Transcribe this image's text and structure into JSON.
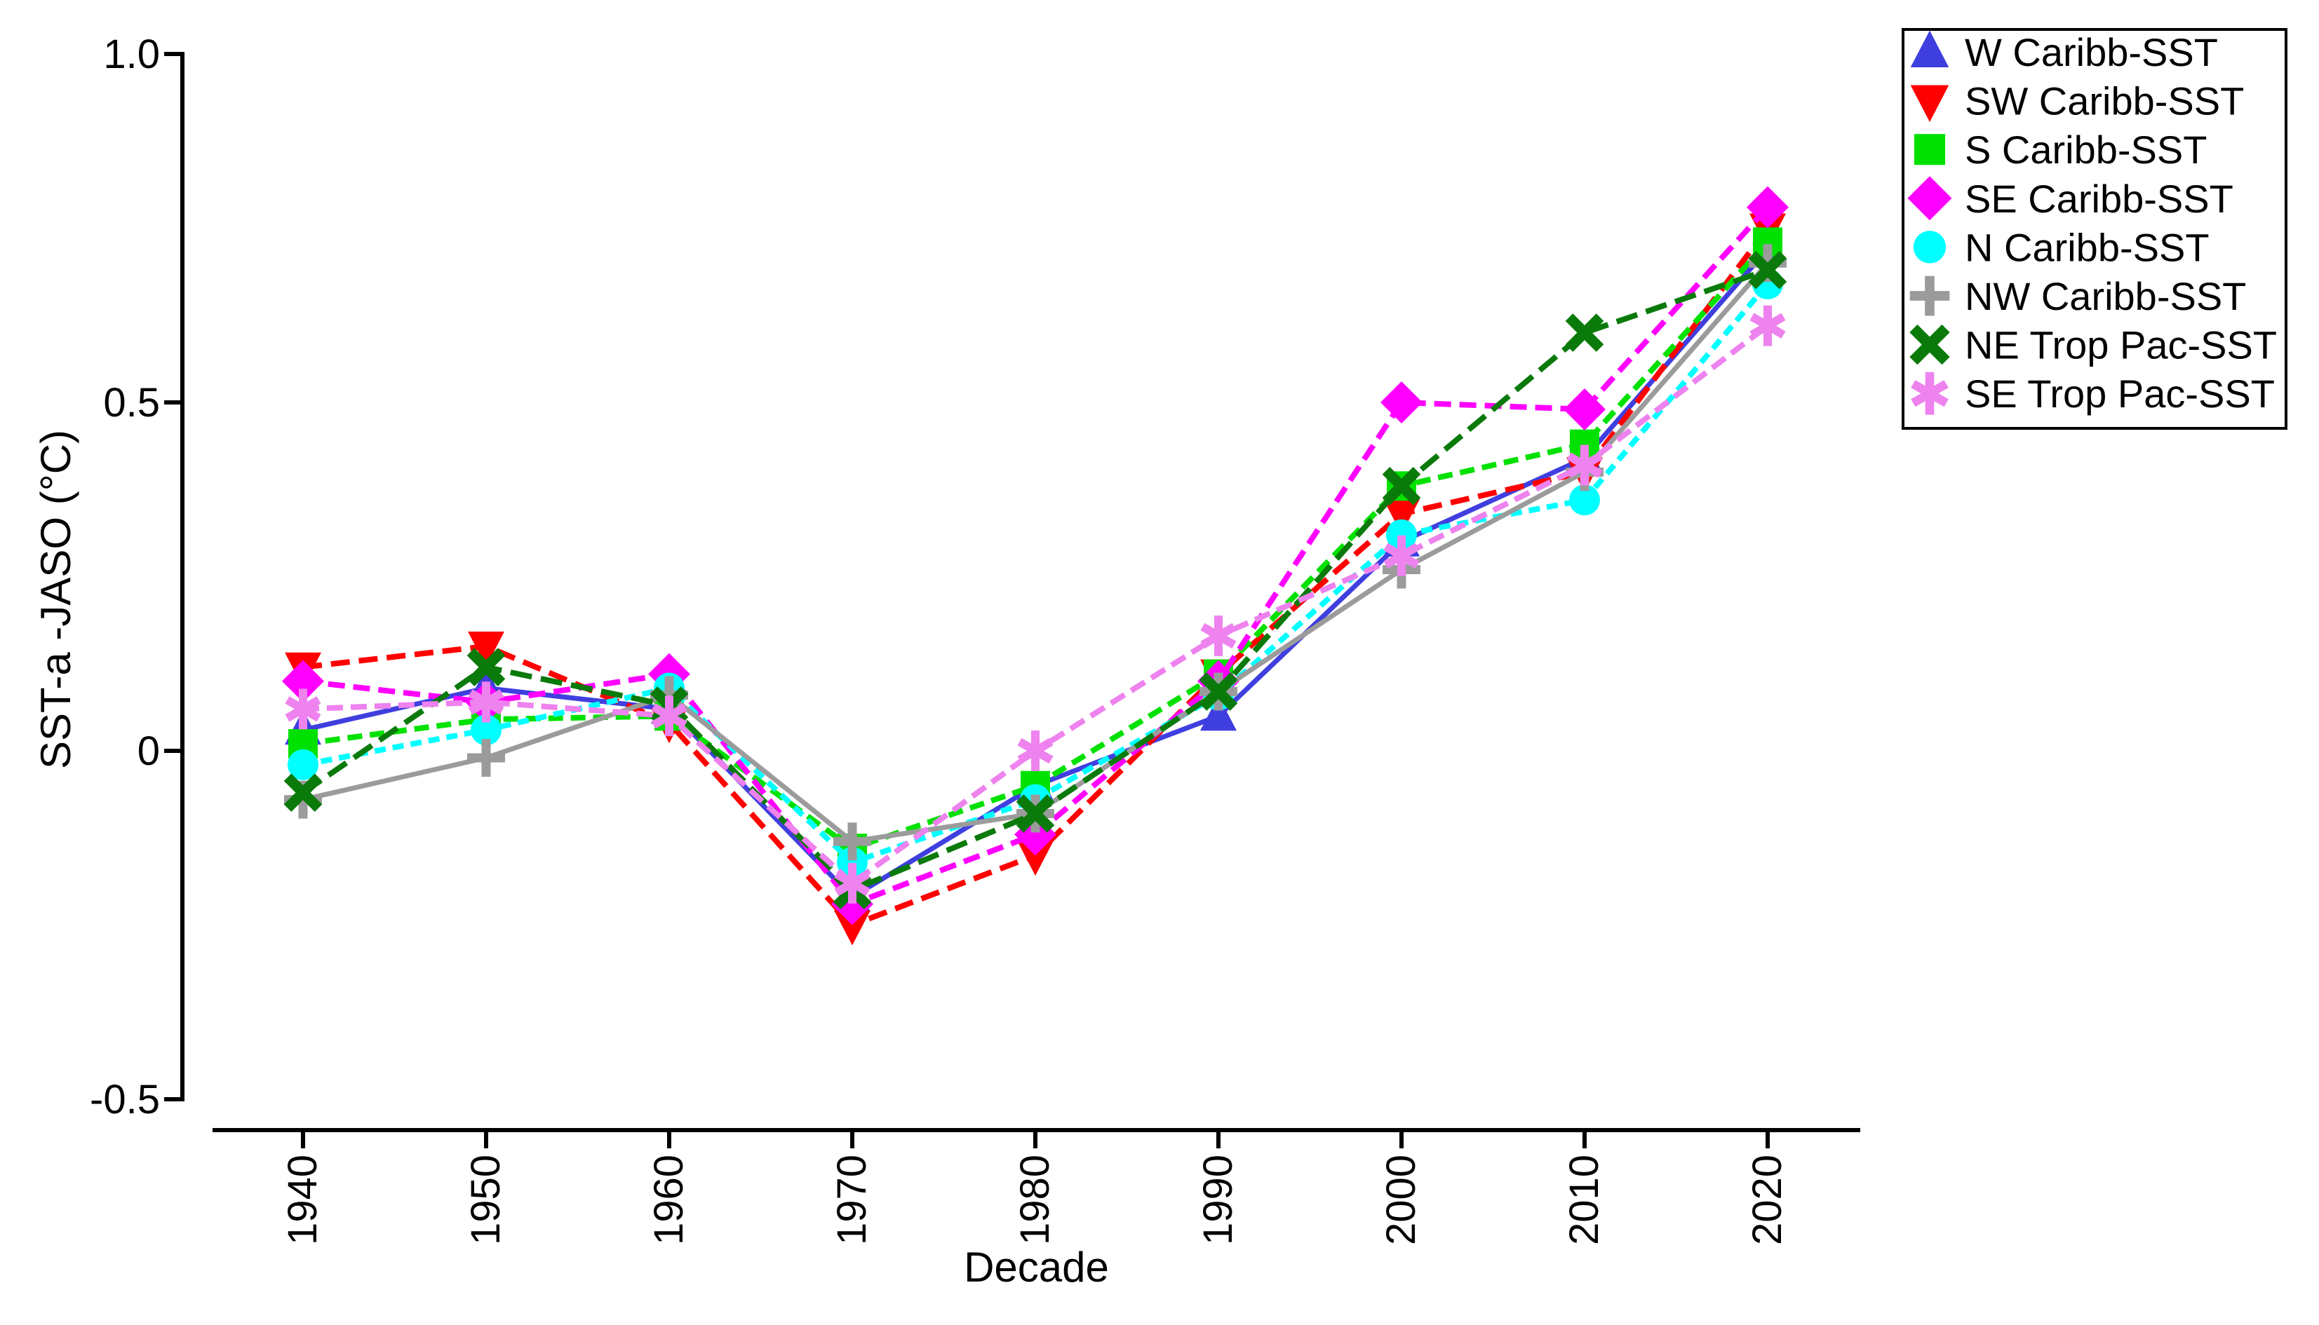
{
  "chart_data": {
    "type": "line",
    "x": [
      1940,
      1950,
      1960,
      1970,
      1980,
      1990,
      2000,
      2010,
      2020
    ],
    "x_tick_labels": [
      "1940",
      "1950",
      "1960",
      "1970",
      "1980",
      "1990",
      "2000",
      "2010",
      "2020"
    ],
    "xlabel": "Decade",
    "ylabel": "SST-a -JASO (°C)",
    "ylim": [
      -0.5,
      1.0
    ],
    "y_ticks": [
      {
        "value": 1.0,
        "label": "1.0"
      },
      {
        "value": 0.5,
        "label": "0.5"
      },
      {
        "value": 0.0,
        "label": "0"
      },
      {
        "value": -0.5,
        "label": "-0.5"
      }
    ],
    "grid": false,
    "legend_position": "top-right",
    "series": [
      {
        "name": "W Caribb-SST",
        "marker": "triangle-up",
        "color": "#3f3fe0",
        "line": "solid",
        "dash": null,
        "values": [
          0.03,
          0.09,
          0.06,
          -0.21,
          -0.05,
          0.05,
          0.3,
          0.42,
          0.72
        ]
      },
      {
        "name": "SW Caribb-SST",
        "marker": "triangle-down",
        "color": "#ff0000",
        "line": "dashed",
        "dash": "27 13",
        "values": [
          0.12,
          0.15,
          0.04,
          -0.25,
          -0.15,
          0.11,
          0.34,
          0.4,
          0.75
        ]
      },
      {
        "name": "S Caribb-SST",
        "marker": "square",
        "color": "#00e100",
        "line": "dashed",
        "dash": "21 11",
        "values": [
          0.01,
          0.045,
          0.05,
          -0.14,
          -0.05,
          0.11,
          0.38,
          0.44,
          0.73
        ]
      },
      {
        "name": "SE Caribb-SST",
        "marker": "diamond",
        "color": "#ff00ff",
        "line": "dashed",
        "dash": "24 12",
        "values": [
          0.1,
          0.07,
          0.11,
          -0.22,
          -0.12,
          0.1,
          0.5,
          0.49,
          0.78
        ]
      },
      {
        "name": "N Caribb-SST",
        "marker": "circle",
        "color": "#00ffff",
        "line": "dashed",
        "dash": "16 10",
        "values": [
          -0.02,
          0.03,
          0.09,
          -0.16,
          -0.07,
          0.08,
          0.31,
          0.36,
          0.67
        ]
      },
      {
        "name": "NW Caribb-SST",
        "marker": "plus",
        "color": "#9b9b9b",
        "line": "solid",
        "dash": null,
        "values": [
          -0.07,
          -0.01,
          0.08,
          -0.13,
          -0.09,
          0.085,
          0.26,
          0.4,
          0.7
        ]
      },
      {
        "name": "NE Trop Pac-SST",
        "marker": "x",
        "color": "#0a7a0a",
        "line": "dashed",
        "dash": "31 13",
        "values": [
          -0.06,
          0.12,
          0.065,
          -0.2,
          -0.09,
          0.085,
          0.38,
          0.6,
          0.69
        ]
      },
      {
        "name": "SE Trop Pac-SST",
        "marker": "asterisk",
        "color": "#ee82ee",
        "line": "dashed",
        "dash": "23 11",
        "values": [
          0.06,
          0.07,
          0.05,
          -0.19,
          0.0,
          0.165,
          0.28,
          0.41,
          0.61
        ]
      }
    ]
  }
}
